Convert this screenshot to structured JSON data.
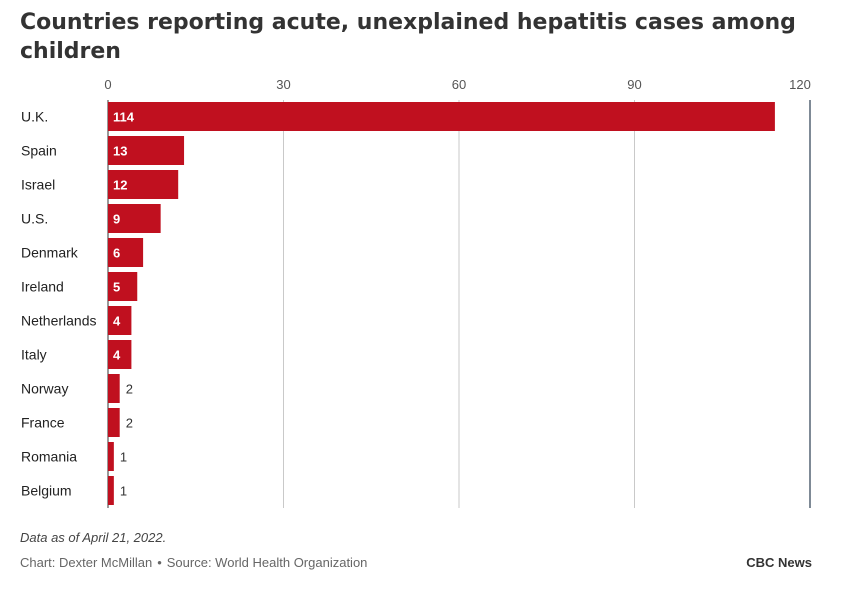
{
  "chart_data": {
    "type": "bar",
    "orientation": "horizontal",
    "title": "Countries reporting acute, unexplained hepatitis cases among children",
    "categories": [
      "U.K.",
      "Spain",
      "Israel",
      "U.S.",
      "Denmark",
      "Ireland",
      "Netherlands",
      "Italy",
      "Norway",
      "France",
      "Romania",
      "Belgium"
    ],
    "values": [
      114,
      13,
      12,
      9,
      6,
      5,
      4,
      4,
      2,
      2,
      1,
      1
    ],
    "xlim": [
      0,
      120
    ],
    "xticks": [
      0,
      30,
      60,
      90,
      120
    ],
    "grid": true,
    "legend": "none",
    "bar_color": "#c0101f",
    "grid_color": "#c9c9c9"
  },
  "footer": {
    "note": "Data as of April 21, 2022.",
    "chart_credit": "Chart: Dexter McMillan",
    "separator": "•",
    "source": "Source: World Health Organization",
    "brand": "CBC News"
  }
}
